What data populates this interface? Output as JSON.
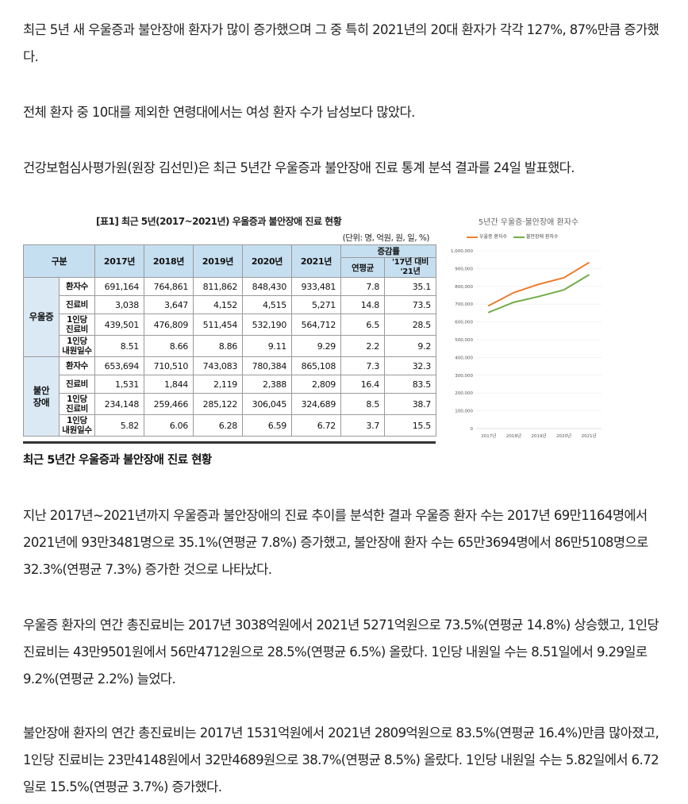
{
  "paragraphs": {
    "p1": "최근 5년 새 우울증과 불안장애 환자가 많이 증가했으며 그 중 특히 2021년의 20대 환자가 각각 127%, 87%만큼 증가했다.",
    "p2": "전체 환자 중 10대를 제외한 연령대에서는 여성 환자 수가 남성보다 많았다.",
    "p3": "건강보험심사평가원(원장 김선민)은 최근 5년간 우울증과 불안장애 진료 통계 분석 결과를 24일 발표했다.",
    "p4": "지난 2017년~2021년까지 우울증과 불안장애의 진료 추이를 분석한 결과 우울증 환자 수는 2017년 69만1164명에서 2021년에 93만3481명으로 35.1%(연평균 7.8%) 증가했고, 불안장애 환자 수는 65만3694명에서 86만5108명으로 32.3%(연평균 7.3%) 증가한 것으로 나타났다.",
    "p5": "우울증 환자의 연간 총진료비는 2017년 3038억원에서 2021년 5271억원으로 73.5%(연평균 14.8%) 상승했고, 1인당 진료비는 43만9501원에서 56만4712원으로 28.5%(연평균 6.5%) 올랐다. 1인당 내원일 수는 8.51일에서 9.29일로 9.2%(연평균 2.2%) 늘었다.",
    "p6": "불안장애 환자의 연간 총진료비는 2017년 1531억원에서 2021년 2809억원으로 83.5%(연평균 16.4%)만큼 많아졌고, 1인당 진료비는 23만4148원에서 32만4689원으로 38.7%(연평균 8.5%) 올랐다. 1인당 내원일 수는 5.82일에서 6.72일로 15.5%(연평균 3.7%) 증가했다."
  },
  "table": {
    "title": "[표1] 최근 5년(2017~2021년) 우울증과 불안장애 진료 현황",
    "unit": "(단위: 명, 억원, 원, 일, %)",
    "header": {
      "category": "구분",
      "years": [
        "2017년",
        "2018년",
        "2019년",
        "2020년",
        "2021년"
      ],
      "change": "증감률",
      "cagr": "연평균",
      "vs": "'17년 대비 '21년"
    },
    "groups": [
      {
        "name": "우울증",
        "rows": [
          {
            "label": "환자수",
            "values": [
              "691,164",
              "764,861",
              "811,862",
              "848,430",
              "933,481"
            ],
            "cagr": "7.8",
            "vs": "35.1"
          },
          {
            "label": "진료비",
            "values": [
              "3,038",
              "3,647",
              "4,152",
              "4,515",
              "5,271"
            ],
            "cagr": "14.8",
            "vs": "73.5"
          },
          {
            "label": "1인당 진료비",
            "values": [
              "439,501",
              "476,809",
              "511,454",
              "532,190",
              "564,712"
            ],
            "cagr": "6.5",
            "vs": "28.5"
          },
          {
            "label": "1인당 내원일수",
            "values": [
              "8.51",
              "8.66",
              "8.86",
              "9.11",
              "9.29"
            ],
            "cagr": "2.2",
            "vs": "9.2"
          }
        ]
      },
      {
        "name": "불안 장애",
        "rows": [
          {
            "label": "환자수",
            "values": [
              "653,694",
              "710,510",
              "743,083",
              "780,384",
              "865,108"
            ],
            "cagr": "7.3",
            "vs": "32.3"
          },
          {
            "label": "진료비",
            "values": [
              "1,531",
              "1,844",
              "2,119",
              "2,388",
              "2,809"
            ],
            "cagr": "16.4",
            "vs": "83.5"
          },
          {
            "label": "1인당 진료비",
            "values": [
              "234,148",
              "259,466",
              "285,122",
              "306,045",
              "324,689"
            ],
            "cagr": "8.5",
            "vs": "38.7"
          },
          {
            "label": "1인당 내원일수",
            "values": [
              "5.82",
              "6.06",
              "6.28",
              "6.59",
              "6.72"
            ],
            "cagr": "3.7",
            "vs": "15.5"
          }
        ]
      }
    ],
    "caption": "최근 5년간 우울증과 불안장애 진료 현황"
  },
  "chart_data": {
    "type": "line",
    "title": "5년간 우울증·불안장애 환자수",
    "categories": [
      "2017년",
      "2018년",
      "2019년",
      "2020년",
      "2021년"
    ],
    "series": [
      {
        "name": "우울증 환자수",
        "values": [
          691164,
          764861,
          811862,
          848430,
          933481
        ],
        "color": "#ed7d31"
      },
      {
        "name": "불안장애 환자수",
        "values": [
          653694,
          710510,
          743083,
          780384,
          865108
        ],
        "color": "#70ad47"
      }
    ],
    "ylim": [
      0,
      1000000
    ],
    "yticks": [
      "0",
      "100,000",
      "200,000",
      "300,000",
      "400,000",
      "500,000",
      "600,000",
      "700,000",
      "800,000",
      "900,000",
      "1,000,000"
    ],
    "legend": "top",
    "grid": true
  }
}
